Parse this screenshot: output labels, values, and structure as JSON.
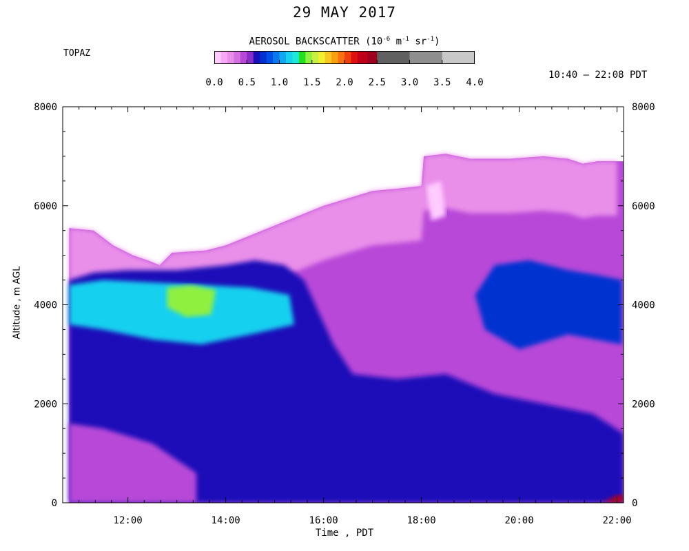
{
  "chart_data": {
    "type": "heatmap",
    "title": "29 MAY 2017",
    "instrument": "TOPAZ",
    "time_range": "10:40 – 22:08 PDT",
    "colorbar": {
      "title_prefix": "AEROSOL BACKSCATTER (10",
      "title_exp1": "-6",
      "title_mid1": " m",
      "title_exp2": "-1",
      "title_mid2": " sr",
      "title_exp3": "-1",
      "title_suffix": ")",
      "ticks": [
        "0.0",
        "0.5",
        "1.0",
        "1.5",
        "2.0",
        "2.5",
        "3.0",
        "3.5",
        "4.0"
      ],
      "range": [
        0,
        4.0
      ],
      "levels": [
        {
          "from": 0.0,
          "to": 0.1,
          "color": "#ffccff"
        },
        {
          "from": 0.1,
          "to": 0.2,
          "color": "#f7a8f7"
        },
        {
          "from": 0.2,
          "to": 0.3,
          "color": "#e98ee9"
        },
        {
          "from": 0.3,
          "to": 0.4,
          "color": "#d470e0"
        },
        {
          "from": 0.4,
          "to": 0.5,
          "color": "#b848d8"
        },
        {
          "from": 0.5,
          "to": 0.6,
          "color": "#8a2cc8"
        },
        {
          "from": 0.6,
          "to": 0.7,
          "color": "#1a10b8"
        },
        {
          "from": 0.7,
          "to": 0.8,
          "color": "#0030d0"
        },
        {
          "from": 0.8,
          "to": 0.9,
          "color": "#0050e8"
        },
        {
          "from": 0.9,
          "to": 1.0,
          "color": "#0a78f0"
        },
        {
          "from": 1.0,
          "to": 1.1,
          "color": "#10a8f0"
        },
        {
          "from": 1.1,
          "to": 1.2,
          "color": "#18d0f0"
        },
        {
          "from": 1.2,
          "to": 1.3,
          "color": "#20e8d8"
        },
        {
          "from": 1.3,
          "to": 1.4,
          "color": "#20e020"
        },
        {
          "from": 1.4,
          "to": 1.5,
          "color": "#90f040"
        },
        {
          "from": 1.5,
          "to": 1.6,
          "color": "#c8f040"
        },
        {
          "from": 1.6,
          "to": 1.7,
          "color": "#f0f030"
        },
        {
          "from": 1.7,
          "to": 1.8,
          "color": "#f8c820"
        },
        {
          "from": 1.8,
          "to": 1.9,
          "color": "#f8a010"
        },
        {
          "from": 1.9,
          "to": 2.0,
          "color": "#f87010"
        },
        {
          "from": 2.0,
          "to": 2.1,
          "color": "#f04010"
        },
        {
          "from": 2.1,
          "to": 2.2,
          "color": "#e01010"
        },
        {
          "from": 2.2,
          "to": 2.35,
          "color": "#c00018"
        },
        {
          "from": 2.35,
          "to": 2.5,
          "color": "#a00020"
        },
        {
          "from": 2.5,
          "to": 3.0,
          "color": "#606060"
        },
        {
          "from": 3.0,
          "to": 3.5,
          "color": "#8e8e8e"
        },
        {
          "from": 3.5,
          "to": 4.0,
          "color": "#c8c8c8"
        }
      ]
    },
    "xlabel": "Time , PDT",
    "ylabel": "Altitude , m AGL",
    "x_range_hours": [
      10.667,
      22.133
    ],
    "xticks": [
      "12:00",
      "14:00",
      "16:00",
      "18:00",
      "20:00",
      "22:00"
    ],
    "xtick_hours": [
      12,
      14,
      16,
      18,
      20,
      22
    ],
    "y_range": [
      0,
      8000
    ],
    "yticks": [
      0,
      2000,
      4000,
      6000,
      8000
    ],
    "grid": false,
    "data_start_hours": 10.8,
    "data_end_hours": 22.13,
    "top_of_data_m": [
      {
        "t": 10.8,
        "h": 5550
      },
      {
        "t": 11.3,
        "h": 5500
      },
      {
        "t": 11.7,
        "h": 5200
      },
      {
        "t": 12.1,
        "h": 5000
      },
      {
        "t": 12.4,
        "h": 4900
      },
      {
        "t": 12.65,
        "h": 4800
      },
      {
        "t": 12.9,
        "h": 5050
      },
      {
        "t": 13.6,
        "h": 5100
      },
      {
        "t": 14.0,
        "h": 5200
      },
      {
        "t": 14.5,
        "h": 5400
      },
      {
        "t": 15.0,
        "h": 5600
      },
      {
        "t": 15.5,
        "h": 5800
      },
      {
        "t": 16.0,
        "h": 6000
      },
      {
        "t": 16.5,
        "h": 6150
      },
      {
        "t": 17.0,
        "h": 6300
      },
      {
        "t": 17.55,
        "h": 6350
      },
      {
        "t": 18.0,
        "h": 6400
      },
      {
        "t": 18.05,
        "h": 7000
      },
      {
        "t": 18.5,
        "h": 7050
      },
      {
        "t": 19.0,
        "h": 6950
      },
      {
        "t": 19.8,
        "h": 6950
      },
      {
        "t": 20.5,
        "h": 7000
      },
      {
        "t": 21.0,
        "h": 6950
      },
      {
        "t": 21.3,
        "h": 6850
      },
      {
        "t": 21.6,
        "h": 6900
      },
      {
        "t": 22.0,
        "h": 6900
      }
    ],
    "layers": [
      {
        "name_hint": "lower boundary layer",
        "level": 0.65,
        "outline": [
          {
            "t": 10.8,
            "h": 0
          },
          {
            "t": 22.13,
            "h": 0
          },
          {
            "t": 22.13,
            "h": 1400
          },
          {
            "t": 21.5,
            "h": 1800
          },
          {
            "t": 20.5,
            "h": 2000
          },
          {
            "t": 19.5,
            "h": 2200
          },
          {
            "t": 18.5,
            "h": 2600
          },
          {
            "t": 17.5,
            "h": 2500
          },
          {
            "t": 16.6,
            "h": 2600
          },
          {
            "t": 16.2,
            "h": 3200
          },
          {
            "t": 15.6,
            "h": 4500
          },
          {
            "t": 15.2,
            "h": 4800
          },
          {
            "t": 14.6,
            "h": 4900
          },
          {
            "t": 14.0,
            "h": 4800
          },
          {
            "t": 13.0,
            "h": 4700
          },
          {
            "t": 12.0,
            "h": 4700
          },
          {
            "t": 11.3,
            "h": 4650
          },
          {
            "t": 10.8,
            "h": 4500
          }
        ]
      },
      {
        "name_hint": "surface purple band",
        "level": 0.45,
        "outline": [
          {
            "t": 10.8,
            "h": 0
          },
          {
            "t": 13.4,
            "h": 0
          },
          {
            "t": 13.4,
            "h": 600
          },
          {
            "t": 12.5,
            "h": 1200
          },
          {
            "t": 11.5,
            "h": 1500
          },
          {
            "t": 10.8,
            "h": 1600
          }
        ]
      },
      {
        "name_hint": "afternoon residual layer",
        "level": 0.75,
        "outline": [
          {
            "t": 19.1,
            "h": 4200
          },
          {
            "t": 19.5,
            "h": 4800
          },
          {
            "t": 20.2,
            "h": 4900
          },
          {
            "t": 21.0,
            "h": 4700
          },
          {
            "t": 21.6,
            "h": 4600
          },
          {
            "t": 22.1,
            "h": 4500
          },
          {
            "t": 22.1,
            "h": 3200
          },
          {
            "t": 21.0,
            "h": 3400
          },
          {
            "t": 20.0,
            "h": 3100
          },
          {
            "t": 19.3,
            "h": 3500
          }
        ]
      },
      {
        "name_hint": "elevated aerosol layer",
        "level": 1.1,
        "outline": [
          {
            "t": 10.8,
            "h": 4400
          },
          {
            "t": 11.5,
            "h": 4500
          },
          {
            "t": 12.5,
            "h": 4450
          },
          {
            "t": 13.5,
            "h": 4400
          },
          {
            "t": 14.5,
            "h": 4350
          },
          {
            "t": 15.3,
            "h": 4200
          },
          {
            "t": 15.4,
            "h": 3600
          },
          {
            "t": 14.5,
            "h": 3400
          },
          {
            "t": 13.5,
            "h": 3200
          },
          {
            "t": 12.5,
            "h": 3300
          },
          {
            "t": 11.5,
            "h": 3500
          },
          {
            "t": 10.8,
            "h": 3600
          }
        ]
      },
      {
        "name_hint": "peak plume",
        "level": 1.45,
        "outline": [
          {
            "t": 12.8,
            "h": 4350
          },
          {
            "t": 13.3,
            "h": 4400
          },
          {
            "t": 13.8,
            "h": 4300
          },
          {
            "t": 13.7,
            "h": 3800
          },
          {
            "t": 13.2,
            "h": 3750
          },
          {
            "t": 12.8,
            "h": 3950
          }
        ]
      },
      {
        "name_hint": "upper clear patch",
        "level": 0.05,
        "outline": [
          {
            "t": 18.1,
            "h": 6400
          },
          {
            "t": 18.4,
            "h": 6500
          },
          {
            "t": 18.5,
            "h": 5800
          },
          {
            "t": 18.2,
            "h": 5700
          }
        ]
      },
      {
        "name_hint": "surface hot spot",
        "level": 2.2,
        "outline": [
          {
            "t": 21.7,
            "h": 0
          },
          {
            "t": 22.13,
            "h": 0
          },
          {
            "t": 22.13,
            "h": 180
          },
          {
            "t": 21.95,
            "h": 120
          }
        ]
      }
    ]
  }
}
